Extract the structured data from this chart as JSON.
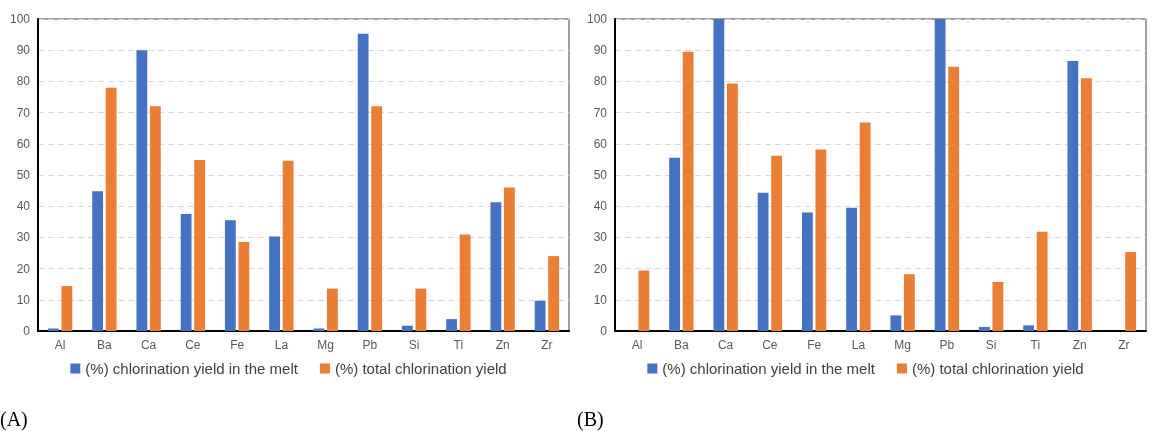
{
  "chart_data": [
    {
      "type": "bar",
      "categories": [
        "Al",
        "Ba",
        "Ca",
        "Ce",
        "Fe",
        "La",
        "Mg",
        "Pb",
        "Si",
        "Ti",
        "Zn",
        "Zr"
      ],
      "series": [
        {
          "name": "(%) chlorination yield in the melt",
          "color": "#4472c4",
          "values": [
            0.8,
            44.8,
            90,
            37.5,
            35.5,
            30.3,
            0.8,
            95.3,
            1.7,
            3.8,
            41.3,
            9.7
          ]
        },
        {
          "name": "(%) total chlorination yield",
          "color": "#ed7d31",
          "values": [
            14.4,
            78,
            72,
            54.8,
            28.5,
            54.6,
            13.6,
            72,
            13.6,
            30.9,
            46,
            24
          ]
        }
      ],
      "ylim": [
        0,
        100
      ],
      "yticks": [
        0,
        10,
        20,
        30,
        40,
        50,
        60,
        70,
        80,
        90,
        100
      ],
      "grid": "y",
      "legend": "bottom",
      "annotations": [
        "(A)"
      ]
    },
    {
      "type": "bar",
      "categories": [
        "Al",
        "Ba",
        "Ca",
        "Ce",
        "Fe",
        "La",
        "Mg",
        "Pb",
        "Si",
        "Ti",
        "Zn",
        "Zr"
      ],
      "series": [
        {
          "name": "(%) chlorination yield in the melt",
          "color": "#4472c4",
          "values": [
            0,
            55.5,
            100,
            44.3,
            38,
            39.5,
            5,
            100,
            1.3,
            1.8,
            86.5,
            0
          ]
        },
        {
          "name": "(%) total chlorination yield",
          "color": "#ed7d31",
          "values": [
            19.4,
            89.5,
            79.3,
            56.2,
            58.2,
            66.8,
            18.2,
            84.7,
            15.7,
            31.8,
            81,
            25.3
          ]
        }
      ],
      "ylim": [
        0,
        100
      ],
      "yticks": [
        0,
        10,
        20,
        30,
        40,
        50,
        60,
        70,
        80,
        90,
        100
      ],
      "grid": "y",
      "legend": "bottom",
      "annotations": [
        "(B)"
      ]
    }
  ]
}
